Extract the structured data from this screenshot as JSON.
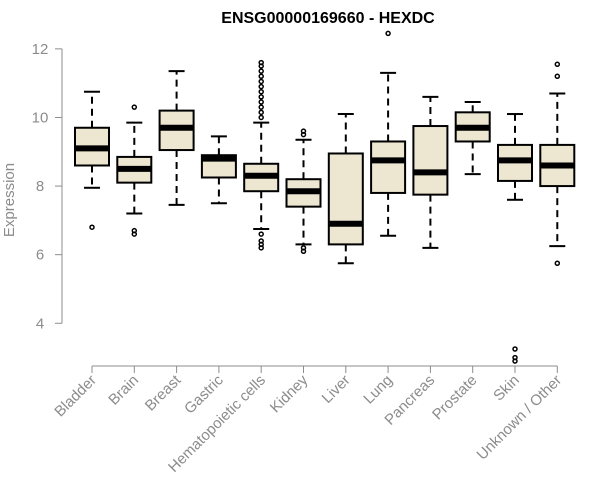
{
  "chart_data": {
    "type": "boxplot",
    "title": "ENSG00000169660 - HEXDC",
    "xlabel": "",
    "ylabel": "Expression",
    "ylim": [
      3.6,
      12.2
    ],
    "yticks": [
      4,
      6,
      8,
      10,
      12
    ],
    "colors": {
      "box_fill": "#ede6d0",
      "stroke": "#000000",
      "axis": "#8c8c8c"
    },
    "categories": [
      "Bladder",
      "Brain",
      "Breast",
      "Gastric",
      "Hematopoietic cells",
      "Kidney",
      "Liver",
      "Lung",
      "Pancreas",
      "Prostate",
      "Skin",
      "Unknown / Other"
    ],
    "boxes": [
      {
        "name": "Bladder",
        "whisker_low": 7.95,
        "q1": 8.6,
        "median": 9.1,
        "q3": 9.7,
        "whisker_high": 10.75,
        "outliers": [
          6.8
        ]
      },
      {
        "name": "Brain",
        "whisker_low": 7.2,
        "q1": 8.1,
        "median": 8.5,
        "q3": 8.85,
        "whisker_high": 9.85,
        "outliers": [
          10.3,
          6.7,
          6.6
        ]
      },
      {
        "name": "Breast",
        "whisker_low": 7.45,
        "q1": 9.05,
        "median": 9.7,
        "q3": 10.2,
        "whisker_high": 11.35,
        "outliers": []
      },
      {
        "name": "Gastric",
        "whisker_low": 7.5,
        "q1": 8.25,
        "median": 8.8,
        "q3": 8.9,
        "whisker_high": 9.45,
        "outliers": []
      },
      {
        "name": "Hematopoietic cells",
        "whisker_low": 6.75,
        "q1": 7.85,
        "median": 8.3,
        "q3": 8.65,
        "whisker_high": 9.85,
        "outliers": [
          6.6,
          6.4,
          6.3,
          6.2,
          10.0,
          10.15,
          10.3,
          10.45,
          10.6,
          10.75,
          10.9,
          11.05,
          11.2,
          11.35,
          11.5,
          11.6
        ]
      },
      {
        "name": "Kidney",
        "whisker_low": 6.3,
        "q1": 7.4,
        "median": 7.85,
        "q3": 8.2,
        "whisker_high": 9.35,
        "outliers": [
          9.6,
          9.5,
          6.2,
          6.1
        ]
      },
      {
        "name": "Liver",
        "whisker_low": 5.75,
        "q1": 6.3,
        "median": 6.9,
        "q3": 8.95,
        "whisker_high": 10.1,
        "outliers": []
      },
      {
        "name": "Lung",
        "whisker_low": 6.55,
        "q1": 7.8,
        "median": 8.75,
        "q3": 9.3,
        "whisker_high": 11.3,
        "outliers": [
          12.45
        ]
      },
      {
        "name": "Pancreas",
        "whisker_low": 6.2,
        "q1": 7.75,
        "median": 8.4,
        "q3": 9.75,
        "whisker_high": 10.6,
        "outliers": []
      },
      {
        "name": "Prostate",
        "whisker_low": 8.35,
        "q1": 9.3,
        "median": 9.7,
        "q3": 10.15,
        "whisker_high": 10.45,
        "outliers": []
      },
      {
        "name": "Skin",
        "whisker_low": 7.6,
        "q1": 8.15,
        "median": 8.75,
        "q3": 9.2,
        "whisker_high": 10.1,
        "outliers": [
          3.25,
          3.0,
          2.9
        ]
      },
      {
        "name": "Unknown / Other",
        "whisker_low": 6.25,
        "q1": 8.0,
        "median": 8.6,
        "q3": 9.2,
        "whisker_high": 10.7,
        "outliers": [
          11.55,
          11.2,
          5.75
        ]
      }
    ]
  }
}
